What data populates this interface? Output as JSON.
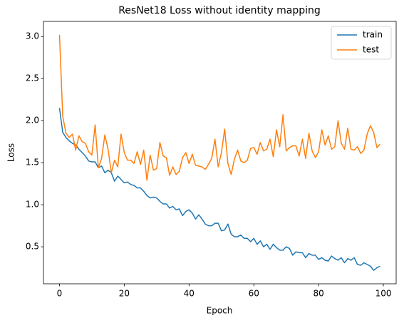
{
  "chart_data": {
    "type": "line",
    "title": "ResNet18 Loss without identity mapping",
    "x_label": "Epoch",
    "y_label": "Loss",
    "x": [
      0,
      1,
      2,
      3,
      4,
      5,
      6,
      7,
      8,
      9,
      10,
      11,
      12,
      13,
      14,
      15,
      16,
      17,
      18,
      19,
      20,
      21,
      22,
      23,
      24,
      25,
      26,
      27,
      28,
      29,
      30,
      31,
      32,
      33,
      34,
      35,
      36,
      37,
      38,
      39,
      40,
      41,
      42,
      43,
      44,
      45,
      46,
      47,
      48,
      49,
      50,
      51,
      52,
      53,
      54,
      55,
      56,
      57,
      58,
      59,
      60,
      61,
      62,
      63,
      64,
      65,
      66,
      67,
      68,
      69,
      70,
      71,
      72,
      73,
      74,
      75,
      76,
      77,
      78,
      79,
      80,
      81,
      82,
      83,
      84,
      85,
      86,
      87,
      88,
      89,
      90,
      91,
      92,
      93,
      94,
      95,
      96,
      97,
      98,
      99
    ],
    "series": [
      {
        "name": "train",
        "color": "#1f77b4",
        "values": [
          2.15,
          1.86,
          1.8,
          1.76,
          1.73,
          1.71,
          1.66,
          1.62,
          1.58,
          1.52,
          1.51,
          1.51,
          1.44,
          1.46,
          1.38,
          1.41,
          1.38,
          1.28,
          1.34,
          1.3,
          1.26,
          1.27,
          1.24,
          1.23,
          1.2,
          1.2,
          1.16,
          1.11,
          1.08,
          1.09,
          1.08,
          1.04,
          1.01,
          1.01,
          0.96,
          0.98,
          0.94,
          0.95,
          0.87,
          0.92,
          0.94,
          0.9,
          0.83,
          0.88,
          0.83,
          0.77,
          0.75,
          0.75,
          0.78,
          0.78,
          0.69,
          0.7,
          0.77,
          0.65,
          0.62,
          0.62,
          0.64,
          0.6,
          0.6,
          0.56,
          0.6,
          0.53,
          0.57,
          0.5,
          0.53,
          0.47,
          0.53,
          0.49,
          0.46,
          0.46,
          0.5,
          0.48,
          0.4,
          0.44,
          0.43,
          0.43,
          0.37,
          0.42,
          0.4,
          0.4,
          0.35,
          0.37,
          0.34,
          0.33,
          0.39,
          0.36,
          0.34,
          0.37,
          0.31,
          0.36,
          0.34,
          0.37,
          0.29,
          0.28,
          0.31,
          0.29,
          0.27,
          0.22,
          0.25,
          0.27
        ]
      },
      {
        "name": "test",
        "color": "#ff7f0e",
        "values": [
          3.02,
          2.05,
          1.85,
          1.8,
          1.84,
          1.65,
          1.82,
          1.75,
          1.73,
          1.63,
          1.59,
          1.95,
          1.44,
          1.55,
          1.83,
          1.66,
          1.38,
          1.53,
          1.45,
          1.84,
          1.62,
          1.53,
          1.53,
          1.49,
          1.63,
          1.48,
          1.65,
          1.29,
          1.59,
          1.41,
          1.43,
          1.74,
          1.58,
          1.56,
          1.35,
          1.45,
          1.36,
          1.4,
          1.56,
          1.62,
          1.49,
          1.6,
          1.47,
          1.46,
          1.45,
          1.42,
          1.48,
          1.55,
          1.78,
          1.45,
          1.62,
          1.9,
          1.49,
          1.36,
          1.54,
          1.65,
          1.52,
          1.5,
          1.53,
          1.67,
          1.68,
          1.6,
          1.74,
          1.64,
          1.66,
          1.78,
          1.57,
          1.89,
          1.69,
          2.07,
          1.64,
          1.68,
          1.7,
          1.7,
          1.58,
          1.78,
          1.55,
          1.85,
          1.64,
          1.56,
          1.63,
          1.89,
          1.71,
          1.82,
          1.66,
          1.69,
          2.0,
          1.73,
          1.66,
          1.91,
          1.66,
          1.65,
          1.69,
          1.61,
          1.65,
          1.84,
          1.94,
          1.86,
          1.68,
          1.72
        ]
      }
    ],
    "xlim": [
      -4.95,
      103.95
    ],
    "ylim": [
      0.06,
      3.18
    ],
    "xticks": [
      0,
      20,
      40,
      60,
      80,
      100
    ],
    "yticks": [
      0.5,
      {
        "value": 1,
        "label": "1.0"
      },
      1.5,
      {
        "value": 2,
        "label": "2.0"
      },
      2.5,
      {
        "value": 3,
        "label": "3.0"
      }
    ],
    "legend": "upper right"
  }
}
